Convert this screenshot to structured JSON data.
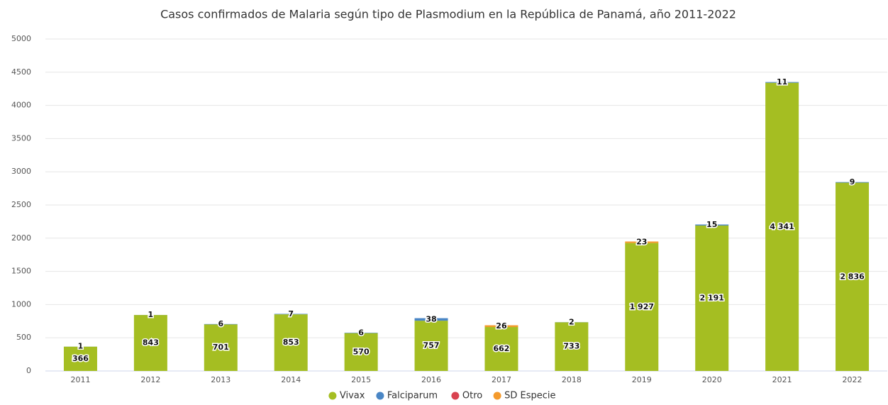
{
  "chart_data": {
    "type": "stacked_bar",
    "title": "Casos confirmados de Malaria según tipo de Plasmodium en la República de Panamá, año 2011-2022",
    "categories": [
      "2011",
      "2012",
      "2013",
      "2014",
      "2015",
      "2016",
      "2017",
      "2018",
      "2019",
      "2020",
      "2021",
      "2022"
    ],
    "series": [
      {
        "name": "Vivax",
        "color": "#a5be22",
        "values": [
          366,
          843,
          701,
          853,
          570,
          757,
          662,
          733,
          1927,
          2191,
          4341,
          2836
        ],
        "value_labels": [
          "366",
          "843",
          "701",
          "853",
          "570",
          "757",
          "662",
          "733",
          "1 927",
          "2 191",
          "4 341",
          "2 836"
        ]
      },
      {
        "name": "Falciparum",
        "color": "#4a86c5",
        "values": [
          1,
          1,
          6,
          7,
          6,
          38,
          null,
          2,
          null,
          15,
          11,
          9
        ]
      },
      {
        "name": "Otro",
        "color": "#d94350",
        "values": [
          null,
          null,
          null,
          null,
          null,
          null,
          null,
          null,
          null,
          null,
          null,
          null
        ]
      },
      {
        "name": "SD Especie",
        "color": "#f49a2c",
        "values": [
          null,
          null,
          null,
          null,
          null,
          null,
          26,
          null,
          23,
          null,
          null,
          null
        ]
      }
    ],
    "ylim": [
      0,
      5000
    ],
    "yticks": [
      0,
      500,
      1000,
      1500,
      2000,
      2500,
      3000,
      3500,
      4000,
      4500,
      5000
    ],
    "grid": true,
    "legend": "bottom"
  }
}
